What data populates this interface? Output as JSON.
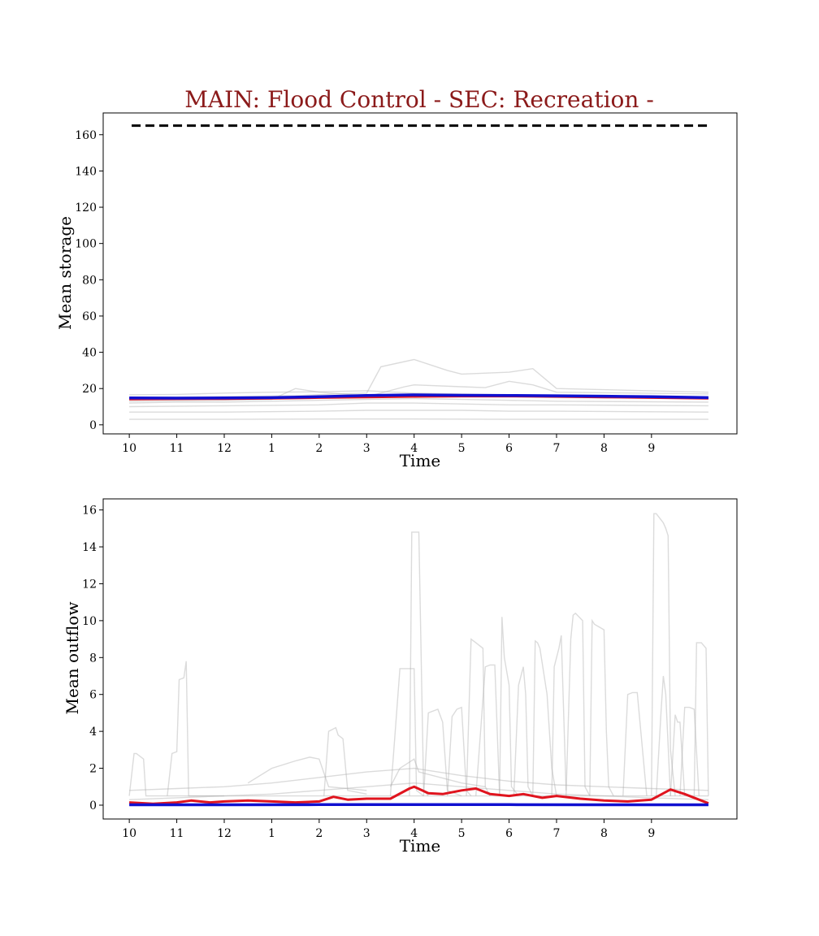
{
  "title": "MAIN: Flood Control - SEC: Recreation -",
  "colors": {
    "title": "#8b1a1a",
    "ensemble": "#b0b0b0",
    "red": "#e0141e",
    "blue": "#1010d0",
    "capacity": "#000000"
  },
  "chart_data": [
    {
      "type": "line",
      "xlabel": "Time",
      "ylabel": "Mean storage",
      "xticks": [
        "10",
        "11",
        "12",
        "1",
        "2",
        "3",
        "4",
        "5",
        "6",
        "7",
        "8",
        "9"
      ],
      "xlim": [
        -0.55,
        12.8
      ],
      "ylim": [
        -5,
        172
      ],
      "yticks": [
        0,
        20,
        40,
        60,
        80,
        100,
        120,
        140,
        160
      ],
      "capacity_line": {
        "y": 165,
        "x": [
          0.05,
          12.2
        ],
        "style": "dashed"
      },
      "ensemble": [
        {
          "x": [
            0,
            1,
            2,
            3,
            4,
            5,
            6,
            7,
            8,
            9,
            10,
            11,
            12.2
          ],
          "y": [
            16.5,
            16.8,
            17.5,
            18,
            18.2,
            18.8,
            17.5,
            17,
            16.5,
            16.2,
            15.8,
            15.5,
            15
          ]
        },
        {
          "x": [
            0,
            2,
            3.5,
            4.3,
            5,
            5.3,
            6,
            6.7,
            7,
            8,
            8.5,
            9,
            12.2
          ],
          "y": [
            15,
            15.5,
            16,
            17,
            17.5,
            32,
            36,
            30,
            28,
            29,
            31,
            20,
            18
          ]
        },
        {
          "x": [
            0,
            2,
            4,
            5,
            5.8,
            6,
            7,
            7.5,
            8,
            8.5,
            9,
            12.2
          ],
          "y": [
            14,
            14.5,
            15,
            15.5,
            21,
            22,
            21,
            20.5,
            24,
            22,
            18,
            17
          ]
        },
        {
          "x": [
            0,
            2,
            3,
            3.5,
            4,
            5,
            6,
            7,
            8,
            9,
            12.2
          ],
          "y": [
            13,
            13.5,
            14,
            20,
            18,
            16,
            16.5,
            16,
            15.5,
            15,
            14.5
          ]
        },
        {
          "x": [
            0,
            1,
            2,
            3,
            4,
            5,
            6,
            7,
            8,
            9,
            12.2
          ],
          "y": [
            12,
            12.5,
            12.5,
            13,
            13.5,
            14,
            14.5,
            14,
            13.5,
            13,
            12.5
          ]
        },
        {
          "x": [
            0,
            2,
            4,
            5,
            6,
            7,
            8,
            9,
            12.2
          ],
          "y": [
            10,
            10.5,
            11,
            12,
            12,
            11.5,
            11,
            11,
            10.5
          ]
        },
        {
          "x": [
            0,
            2,
            4,
            5,
            6,
            7,
            8,
            9,
            12.2
          ],
          "y": [
            7,
            7,
            7.5,
            8,
            8,
            8,
            7.5,
            7.5,
            7
          ]
        },
        {
          "x": [
            0,
            2,
            4.5,
            6,
            8,
            10,
            12.2
          ],
          "y": [
            3,
            3,
            3.2,
            3.2,
            3,
            3,
            3
          ]
        }
      ],
      "series": [
        {
          "color": "red",
          "x": [
            0,
            1,
            2,
            3,
            4,
            5,
            6,
            7,
            8,
            9,
            10,
            11,
            12.2
          ],
          "y": [
            14.2,
            14.3,
            14.4,
            14.6,
            15,
            15.3,
            15.6,
            15.8,
            15.8,
            15.6,
            15.3,
            15,
            14.6
          ]
        },
        {
          "color": "blue",
          "x": [
            0,
            1,
            2,
            3,
            4,
            5,
            6,
            7,
            8,
            9,
            10,
            11,
            12.2
          ],
          "y": [
            14.8,
            14.7,
            14.8,
            15,
            15.5,
            16.2,
            16.5,
            16.3,
            16.2,
            16,
            15.8,
            15.5,
            15
          ]
        }
      ]
    },
    {
      "type": "line",
      "xlabel": "Time",
      "ylabel": "Mean outflow",
      "xticks": [
        "10",
        "11",
        "12",
        "1",
        "2",
        "3",
        "4",
        "5",
        "6",
        "7",
        "8",
        "9"
      ],
      "xlim": [
        -0.55,
        12.8
      ],
      "ylim": [
        -0.75,
        16.6
      ],
      "yticks": [
        0,
        2,
        4,
        6,
        8,
        10,
        12,
        14,
        16
      ],
      "ensemble": [
        {
          "x": [
            0,
            0.1,
            0.15,
            0.3,
            0.35,
            1,
            12.2
          ],
          "y": [
            0.5,
            2.8,
            2.8,
            2.5,
            0.5,
            0.5,
            0.5
          ]
        },
        {
          "x": [
            0.8,
            0.9,
            1.0,
            1.05,
            1.15,
            1.2,
            1.25,
            2
          ],
          "y": [
            0.5,
            2.8,
            2.9,
            6.8,
            6.9,
            7.8,
            0.5,
            0.5
          ]
        },
        {
          "x": [
            2.5,
            3,
            3.5,
            3.8,
            4,
            4.2,
            5
          ],
          "y": [
            1.2,
            2,
            2.4,
            2.6,
            2.5,
            1,
            0.8
          ]
        },
        {
          "x": [
            4.1,
            4.2,
            4.35,
            4.4,
            4.5,
            4.6,
            5
          ],
          "y": [
            0.5,
            4,
            4.2,
            3.8,
            3.6,
            0.8,
            0.6
          ]
        },
        {
          "x": [
            5.5,
            5.6,
            5.7,
            6,
            6.1,
            7,
            7.5
          ],
          "y": [
            1,
            1.5,
            2,
            2.5,
            1.8,
            1.2,
            1
          ]
        },
        {
          "x": [
            5.5,
            5.7,
            5.75,
            6,
            6.05,
            6.2
          ],
          "y": [
            0.5,
            7.4,
            7.4,
            7.4,
            0.8,
            0.5
          ]
        },
        {
          "x": [
            5.9,
            5.95,
            6.0,
            6.05,
            6.1,
            6.2,
            6.3
          ],
          "y": [
            0.5,
            14.8,
            14.8,
            14.8,
            14.8,
            0.8,
            0.5
          ]
        },
        {
          "x": [
            6.2,
            6.3,
            6.5,
            6.6,
            6.7,
            7
          ],
          "y": [
            0.5,
            5,
            5.2,
            4.5,
            0.8,
            0.5
          ]
        },
        {
          "x": [
            6.7,
            6.8,
            6.9,
            7.0,
            7.1,
            7.2
          ],
          "y": [
            0.5,
            4.8,
            5.2,
            5.3,
            0.8,
            0.5
          ]
        },
        {
          "x": [
            7.1,
            7.2,
            7.3,
            7.45,
            7.5,
            7.6
          ],
          "y": [
            0.5,
            9,
            8.8,
            8.5,
            1,
            0.5
          ]
        },
        {
          "x": [
            7.3,
            7.5,
            7.6,
            7.7,
            7.8
          ],
          "y": [
            0.5,
            7.5,
            7.6,
            7.6,
            0.5
          ]
        },
        {
          "x": [
            7.8,
            7.85,
            7.9,
            8.0,
            8.05,
            8.2
          ],
          "y": [
            0.5,
            10.2,
            8,
            6.5,
            1,
            0.5
          ]
        },
        {
          "x": [
            8.1,
            8.2,
            8.3,
            8.35,
            8.4,
            8.5
          ],
          "y": [
            0.5,
            6.5,
            7.5,
            6,
            1,
            0.5
          ]
        },
        {
          "x": [
            8.5,
            8.55,
            8.6,
            8.65,
            8.8,
            8.9,
            9.0
          ],
          "y": [
            0.5,
            8.9,
            8.8,
            8.5,
            6,
            2,
            0.5
          ]
        },
        {
          "x": [
            8.9,
            8.95,
            9.05,
            9.1,
            9.2
          ],
          "y": [
            0.5,
            7.5,
            8.5,
            9.2,
            0.8
          ]
        },
        {
          "x": [
            9.2,
            9.3,
            9.35,
            9.4,
            9.55,
            9.6,
            9.7
          ],
          "y": [
            0.5,
            9,
            10.3,
            10.4,
            10,
            1,
            0.5
          ]
        },
        {
          "x": [
            9.7,
            9.75,
            9.8,
            10.0,
            10.05,
            10.1,
            10.2
          ],
          "y": [
            0.5,
            10,
            9.8,
            9.5,
            4,
            1,
            0.5
          ]
        },
        {
          "x": [
            10.4,
            10.5,
            10.6,
            10.7,
            10.9
          ],
          "y": [
            0.5,
            6,
            6.1,
            6.1,
            0.5
          ]
        },
        {
          "x": [
            11.0,
            11.05,
            11.1,
            11.25,
            11.3,
            11.35,
            11.4,
            11.5
          ],
          "y": [
            0.5,
            15.8,
            15.8,
            15.3,
            15,
            14.6,
            3,
            0.5
          ]
        },
        {
          "x": [
            11.1,
            11.2,
            11.25,
            11.3,
            11.4
          ],
          "y": [
            0.5,
            5,
            7,
            6,
            0.5
          ]
        },
        {
          "x": [
            11.4,
            11.5,
            11.55,
            11.6,
            11.7
          ],
          "y": [
            0.5,
            4.9,
            4.5,
            4.5,
            0.5
          ]
        },
        {
          "x": [
            11.6,
            11.7,
            11.8,
            11.9,
            12.0
          ],
          "y": [
            0.5,
            5.3,
            5.3,
            5.2,
            0.5
          ]
        },
        {
          "x": [
            11.9,
            11.95,
            12.05,
            12.15,
            12.2
          ],
          "y": [
            0.5,
            8.8,
            8.8,
            8.5,
            0.5
          ]
        },
        {
          "x": [
            0,
            1,
            2,
            3,
            4,
            5,
            6,
            7,
            8,
            9,
            10,
            11,
            12.2
          ],
          "y": [
            0.8,
            0.9,
            1,
            1.2,
            1.5,
            1.8,
            2,
            1.6,
            1.3,
            1.1,
            1,
            0.9,
            0.8
          ]
        },
        {
          "x": [
            0,
            1,
            2,
            3,
            4,
            5,
            6,
            7,
            8,
            9,
            10,
            11,
            12.2
          ],
          "y": [
            0.3,
            0.4,
            0.5,
            0.6,
            0.8,
            1,
            1.2,
            1,
            0.8,
            0.6,
            0.5,
            0.4,
            0.3
          ]
        }
      ],
      "series": [
        {
          "color": "red",
          "x": [
            0,
            0.5,
            1,
            1.3,
            1.7,
            2,
            2.5,
            3,
            3.5,
            4,
            4.3,
            4.6,
            5,
            5.5,
            5.9,
            6,
            6.3,
            6.6,
            7,
            7.3,
            7.6,
            8,
            8.3,
            8.7,
            9,
            9.5,
            10,
            10.5,
            11,
            11.4,
            11.7,
            12,
            12.2
          ],
          "y": [
            0.15,
            0.08,
            0.15,
            0.25,
            0.15,
            0.2,
            0.25,
            0.2,
            0.15,
            0.2,
            0.45,
            0.3,
            0.35,
            0.35,
            0.9,
            1.0,
            0.65,
            0.6,
            0.8,
            0.9,
            0.6,
            0.5,
            0.6,
            0.4,
            0.5,
            0.35,
            0.25,
            0.2,
            0.3,
            0.85,
            0.6,
            0.3,
            0.1
          ]
        },
        {
          "color": "blue",
          "x": [
            0,
            2,
            4,
            6,
            8,
            10,
            12.2
          ],
          "y": [
            0.02,
            0.02,
            0.03,
            0.03,
            0.03,
            0.02,
            0.02
          ]
        }
      ]
    }
  ]
}
